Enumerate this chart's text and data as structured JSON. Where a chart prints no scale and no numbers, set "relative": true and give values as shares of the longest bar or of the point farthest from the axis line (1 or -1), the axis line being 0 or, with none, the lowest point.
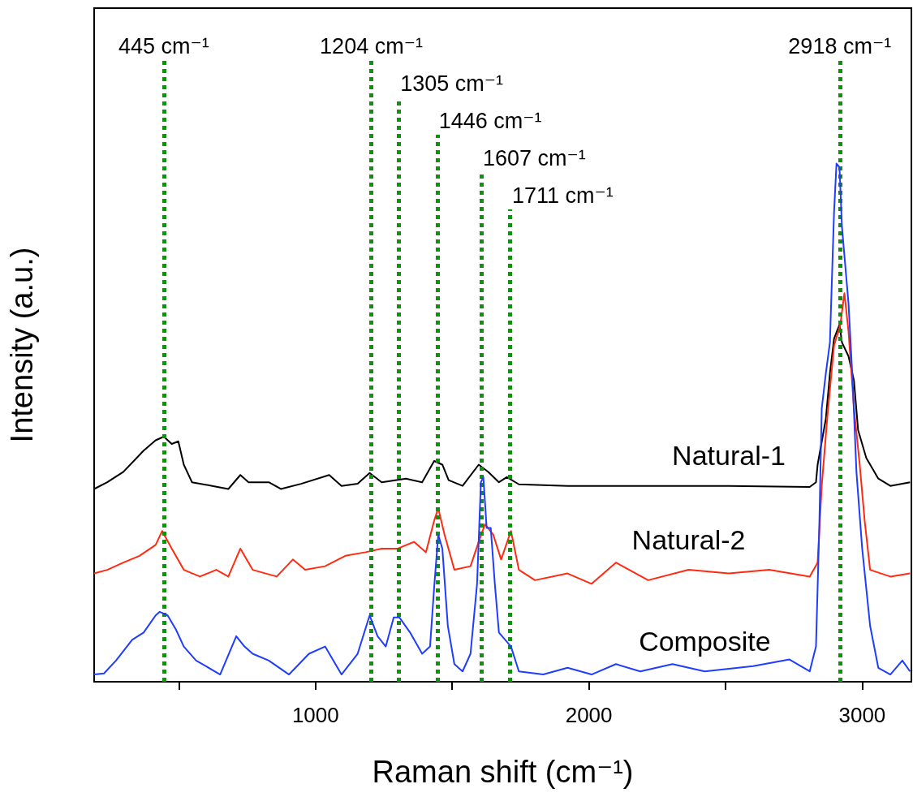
{
  "chart_data": {
    "type": "line",
    "xlabel": "Raman shift (cm⁻¹)",
    "ylabel": "Intensity (a.u.)",
    "relative": true,
    "legend": false,
    "grid": false,
    "marker": "none",
    "line_style": "solid",
    "xlim": [
      190,
      3180
    ],
    "xticks": [
      {
        "value": 500,
        "label": null
      },
      1000,
      {
        "value": 1500,
        "label": null
      },
      2000,
      {
        "value": 2500,
        "label": null
      },
      3000
    ],
    "series": [
      {
        "name": "Natural-1",
        "color": "#000000",
        "x": [
          190,
          238,
          297,
          371,
          415,
          445,
          474,
          498,
          518,
          548,
          622,
          681,
          725,
          755,
          829,
          873,
          947,
          1050,
          1095,
          1154,
          1198,
          1242,
          1331,
          1390,
          1434,
          1464,
          1487,
          1538,
          1597,
          1632,
          1671,
          1700,
          1744,
          1922,
          2217,
          2512,
          2808,
          2831,
          2837,
          2867,
          2882,
          2897,
          2917,
          2926,
          2950,
          2970,
          2985,
          3015,
          3059,
          3103,
          3175
        ],
        "values": [
          0.372,
          0.385,
          0.405,
          0.446,
          0.466,
          0.473,
          0.459,
          0.464,
          0.419,
          0.385,
          0.378,
          0.372,
          0.399,
          0.385,
          0.385,
          0.372,
          0.382,
          0.399,
          0.378,
          0.382,
          0.403,
          0.385,
          0.392,
          0.385,
          0.426,
          0.419,
          0.389,
          0.378,
          0.419,
          0.405,
          0.385,
          0.395,
          0.381,
          0.378,
          0.378,
          0.378,
          0.376,
          0.385,
          0.419,
          0.507,
          0.595,
          0.662,
          0.689,
          0.655,
          0.628,
          0.581,
          0.486,
          0.432,
          0.392,
          0.378,
          0.385
        ]
      },
      {
        "name": "Natural-2",
        "color": "#ff2a10",
        "x": [
          190,
          238,
          297,
          356,
          415,
          439,
          474,
          518,
          577,
          637,
          681,
          725,
          770,
          858,
          917,
          962,
          1035,
          1109,
          1183,
          1242,
          1301,
          1360,
          1404,
          1434,
          1449,
          1472,
          1508,
          1567,
          1597,
          1620,
          1650,
          1679,
          1715,
          1744,
          1803,
          1922,
          2010,
          2099,
          2217,
          2365,
          2512,
          2660,
          2808,
          2837,
          2852,
          2873,
          2897,
          2920,
          2935,
          2950,
          2970,
          2991,
          3009,
          3029,
          3103,
          3175
        ],
        "values": [
          0.209,
          0.216,
          0.23,
          0.243,
          0.264,
          0.291,
          0.257,
          0.216,
          0.203,
          0.216,
          0.203,
          0.257,
          0.216,
          0.203,
          0.236,
          0.216,
          0.223,
          0.243,
          0.25,
          0.257,
          0.257,
          0.27,
          0.25,
          0.311,
          0.335,
          0.284,
          0.216,
          0.223,
          0.27,
          0.304,
          0.284,
          0.236,
          0.291,
          0.216,
          0.196,
          0.209,
          0.189,
          0.23,
          0.196,
          0.216,
          0.209,
          0.216,
          0.203,
          0.23,
          0.378,
          0.514,
          0.649,
          0.689,
          0.75,
          0.676,
          0.527,
          0.419,
          0.311,
          0.216,
          0.203,
          0.209
        ]
      },
      {
        "name": "Composite",
        "color": "#1f3dff",
        "x": [
          190,
          226,
          270,
          329,
          371,
          415,
          430,
          459,
          489,
          518,
          563,
          651,
          710,
          740,
          770,
          829,
          903,
          976,
          1035,
          1095,
          1154,
          1198,
          1227,
          1257,
          1286,
          1307,
          1346,
          1390,
          1419,
          1434,
          1449,
          1464,
          1484,
          1508,
          1538,
          1567,
          1591,
          1605,
          1614,
          1626,
          1641,
          1656,
          1671,
          1715,
          1744,
          1833,
          1922,
          2010,
          2099,
          2188,
          2306,
          2424,
          2601,
          2734,
          2808,
          2831,
          2843,
          2852,
          2867,
          2882,
          2897,
          2906,
          2917,
          2926,
          2950,
          2965,
          2979,
          3000,
          3029,
          3059,
          3103,
          3147,
          3175
        ],
        "values": [
          0.014,
          0.016,
          0.041,
          0.081,
          0.095,
          0.128,
          0.135,
          0.128,
          0.101,
          0.068,
          0.041,
          0.014,
          0.088,
          0.068,
          0.054,
          0.041,
          0.014,
          0.054,
          0.068,
          0.014,
          0.054,
          0.128,
          0.088,
          0.068,
          0.124,
          0.124,
          0.095,
          0.054,
          0.068,
          0.182,
          0.284,
          0.257,
          0.108,
          0.034,
          0.02,
          0.054,
          0.189,
          0.385,
          0.395,
          0.297,
          0.297,
          0.189,
          0.095,
          0.068,
          0.02,
          0.014,
          0.027,
          0.014,
          0.034,
          0.02,
          0.034,
          0.02,
          0.03,
          0.043,
          0.02,
          0.068,
          0.297,
          0.527,
          0.595,
          0.655,
          0.905,
          1,
          0.993,
          0.878,
          0.73,
          0.581,
          0.405,
          0.257,
          0.108,
          0.027,
          0.014,
          0.041,
          0.02
        ]
      }
    ],
    "ref_lines": [
      {
        "axis": "x",
        "value": 445,
        "label": "445 cm⁻¹",
        "color": "#0a960a",
        "line_style": "dotted"
      },
      {
        "axis": "x",
        "value": 1204,
        "label": "1204 cm⁻¹",
        "color": "#0a960a",
        "line_style": "dotted"
      },
      {
        "axis": "x",
        "value": 1305,
        "label": "1305 cm⁻¹",
        "color": "#0a960a",
        "line_style": "dotted"
      },
      {
        "axis": "x",
        "value": 1446,
        "label": "1446 cm⁻¹",
        "color": "#0a960a",
        "line_style": "dotted"
      },
      {
        "axis": "x",
        "value": 1607,
        "label": "1607 cm⁻¹",
        "color": "#0a960a",
        "line_style": "dotted"
      },
      {
        "axis": "x",
        "value": 1711,
        "label": "1711 cm⁻¹",
        "color": "#0a960a",
        "line_style": "dotted"
      },
      {
        "axis": "x",
        "value": 2918,
        "label": "2918 cm⁻¹",
        "color": "#0a960a",
        "line_style": "dotted"
      }
    ]
  }
}
